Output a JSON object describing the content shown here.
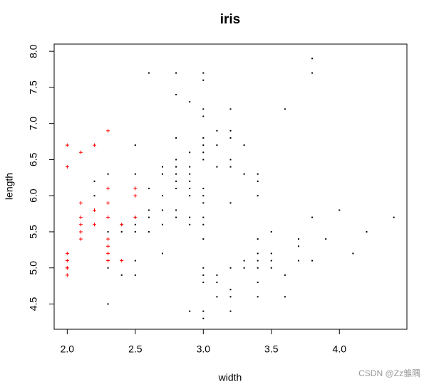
{
  "chart_data": {
    "type": "scatter",
    "title": "iris",
    "xlabel": "width",
    "ylabel": "length",
    "watermark": "CSDN @Zz雏隅",
    "xlim": [
      1.904,
      4.496
    ],
    "ylim": [
      4.15,
      8.1
    ],
    "xticks": [
      {
        "value": 2,
        "label": "2.0"
      },
      2.5,
      {
        "value": 3,
        "label": "3.0"
      },
      3.5,
      {
        "value": 4,
        "label": "4.0"
      }
    ],
    "yticks": [
      4.5,
      {
        "value": 5,
        "label": "5.0"
      },
      5.5,
      {
        "value": 6,
        "label": "6.0"
      },
      6.5,
      {
        "value": 7,
        "label": "7.0"
      },
      7.5,
      {
        "value": 8,
        "label": "8.0"
      }
    ],
    "series": [
      {
        "color": "#000000",
        "marker": "dot",
        "x": [
          2.2,
          2.2,
          2.3,
          2.3,
          2.3,
          2.3,
          2.4,
          2.4,
          2.4,
          2.5,
          2.5,
          2.5,
          2.5,
          2.5,
          2.5,
          2.5,
          2.6,
          2.6,
          2.6,
          2.6,
          2.6,
          2.7,
          2.7,
          2.7,
          2.7,
          2.7,
          2.7,
          2.8,
          2.8,
          2.8,
          2.8,
          2.8,
          2.8,
          2.8,
          2.8,
          2.8,
          2.8,
          2.9,
          2.9,
          2.9,
          2.9,
          2.9,
          2.9,
          2.9,
          2.9,
          2.9,
          2.9,
          3.0,
          3.0,
          3.0,
          3.0,
          3.0,
          3.0,
          3.0,
          3.0,
          3.0,
          3.0,
          3.0,
          3.0,
          3.0,
          3.0,
          3.0,
          3.0,
          3.0,
          3.0,
          3.0,
          3.1,
          3.1,
          3.1,
          3.1,
          3.1,
          3.1,
          3.2,
          3.2,
          3.2,
          3.2,
          3.2,
          3.2,
          3.2,
          3.2,
          3.2,
          3.2,
          3.3,
          3.3,
          3.3,
          3.3,
          3.4,
          3.4,
          3.4,
          3.4,
          3.4,
          3.4,
          3.4,
          3.4,
          3.4,
          3.5,
          3.5,
          3.5,
          3.5,
          3.6,
          3.6,
          3.6,
          3.7,
          3.7,
          3.7,
          3.8,
          3.8,
          3.8,
          3.8,
          3.9,
          4.0,
          4.1,
          4.2,
          4.4
        ],
        "values": [
          6.2,
          6.0,
          6.3,
          5.5,
          5.0,
          4.5,
          5.5,
          4.9,
          5.6,
          6.7,
          6.3,
          5.6,
          5.5,
          5.1,
          4.9,
          5.7,
          7.7,
          6.1,
          5.8,
          5.7,
          5.5,
          6.4,
          6.3,
          6.0,
          5.8,
          5.6,
          5.2,
          7.7,
          7.4,
          6.8,
          6.5,
          6.4,
          6.3,
          6.2,
          6.1,
          5.8,
          5.7,
          7.3,
          6.6,
          6.4,
          6.3,
          6.2,
          6.1,
          6.0,
          5.7,
          5.6,
          4.4,
          7.7,
          7.6,
          7.2,
          7.1,
          6.8,
          6.7,
          6.6,
          6.5,
          6.1,
          6.0,
          5.9,
          5.7,
          5.6,
          5.4,
          5.0,
          4.9,
          4.8,
          4.4,
          4.3,
          6.9,
          6.7,
          6.4,
          4.9,
          4.8,
          4.6,
          7.2,
          6.9,
          6.8,
          6.5,
          6.4,
          5.9,
          5.0,
          4.7,
          4.6,
          4.4,
          6.7,
          6.3,
          5.1,
          5.0,
          6.3,
          6.2,
          6.0,
          5.4,
          5.2,
          5.1,
          5.0,
          4.8,
          4.6,
          5.5,
          5.2,
          5.1,
          5.0,
          7.2,
          4.9,
          4.6,
          5.4,
          5.3,
          5.1,
          7.9,
          7.7,
          5.7,
          5.1,
          5.4,
          5.8,
          5.2,
          5.5,
          5.7
        ]
      },
      {
        "color": "#ff0000",
        "marker": "plus",
        "x": [
          2.0,
          2.0,
          2.0,
          2.0,
          2.0,
          2.0,
          2.0,
          2.1,
          2.1,
          2.1,
          2.1,
          2.1,
          2.1,
          2.2,
          2.2,
          2.2,
          2.3,
          2.3,
          2.3,
          2.3,
          2.3,
          2.3,
          2.3,
          2.3,
          2.4,
          2.4,
          2.5,
          2.5,
          2.5
        ],
        "values": [
          6.7,
          6.4,
          5.2,
          5.1,
          5.0,
          5.0,
          4.9,
          6.6,
          5.9,
          5.7,
          5.6,
          5.5,
          5.4,
          6.7,
          5.8,
          5.6,
          6.9,
          6.1,
          5.9,
          5.7,
          5.4,
          5.3,
          5.2,
          5.1,
          5.6,
          5.1,
          6.1,
          6.0,
          5.7
        ]
      }
    ]
  }
}
